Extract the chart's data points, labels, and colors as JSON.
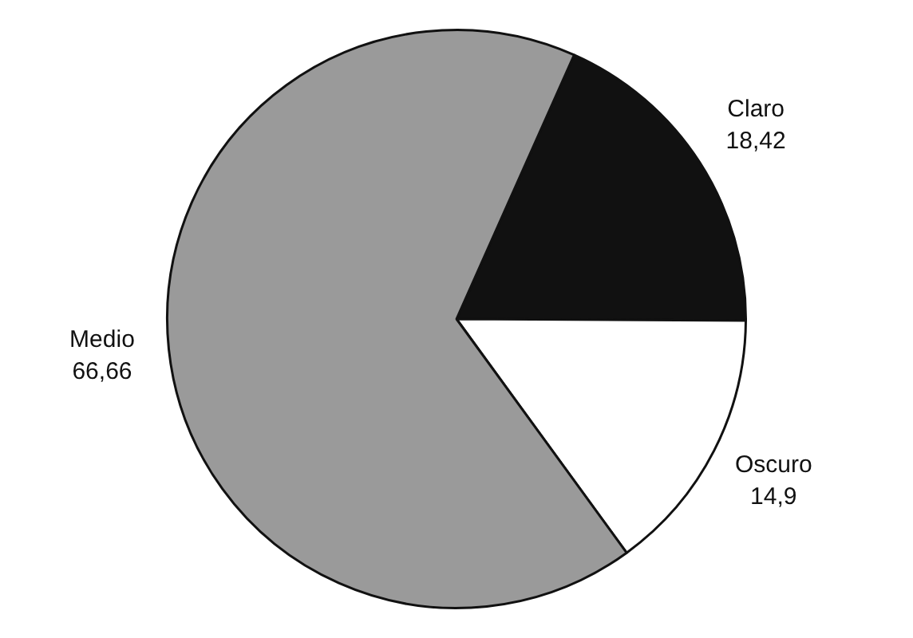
{
  "chart_data": {
    "type": "pie",
    "categories": [
      "Claro",
      "Oscuro",
      "Medio"
    ],
    "values": [
      18.42,
      14.9,
      66.66
    ],
    "value_labels": [
      "18,42",
      "14,9",
      "66,66"
    ],
    "colors": [
      "#111111",
      "#ffffff",
      "#9a9a9a"
    ],
    "legend": false
  }
}
